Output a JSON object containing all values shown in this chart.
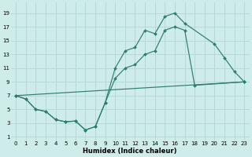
{
  "xlabel": "Humidex (Indice chaleur)",
  "bg_color": "#ceecea",
  "grid_color": "#b8d8d6",
  "line_color": "#2e7d70",
  "xlim": [
    -0.5,
    23.5
  ],
  "ylim": [
    0.5,
    20.5
  ],
  "xticks": [
    0,
    1,
    2,
    3,
    4,
    5,
    6,
    7,
    8,
    9,
    10,
    11,
    12,
    13,
    14,
    15,
    16,
    17,
    18,
    19,
    20,
    21,
    22,
    23
  ],
  "yticks": [
    1,
    3,
    5,
    7,
    9,
    11,
    13,
    15,
    17,
    19
  ],
  "curve1_x": [
    0,
    1,
    2,
    3,
    4,
    5,
    6,
    7,
    8,
    9,
    10,
    11,
    12,
    13,
    14,
    15,
    16,
    17,
    20,
    21,
    22,
    23
  ],
  "curve1_y": [
    7.0,
    6.5,
    5.0,
    4.7,
    3.5,
    3.2,
    3.3,
    2.0,
    2.5,
    6.0,
    11.0,
    13.5,
    14.0,
    16.5,
    16.0,
    18.5,
    19.0,
    17.5,
    14.5,
    12.5,
    10.5,
    9.0
  ],
  "curve2_x": [
    0,
    1,
    2,
    3,
    4,
    5,
    6,
    7,
    8,
    9,
    10,
    11,
    12,
    13,
    14,
    15,
    16,
    17,
    18,
    23
  ],
  "curve2_y": [
    7.0,
    6.5,
    5.0,
    4.7,
    3.5,
    3.2,
    3.3,
    2.0,
    2.5,
    6.0,
    9.5,
    11.0,
    11.5,
    13.0,
    13.5,
    16.5,
    17.0,
    16.5,
    8.5,
    9.0
  ],
  "curve3_x": [
    0,
    23
  ],
  "curve3_y": [
    7.0,
    9.0
  ]
}
